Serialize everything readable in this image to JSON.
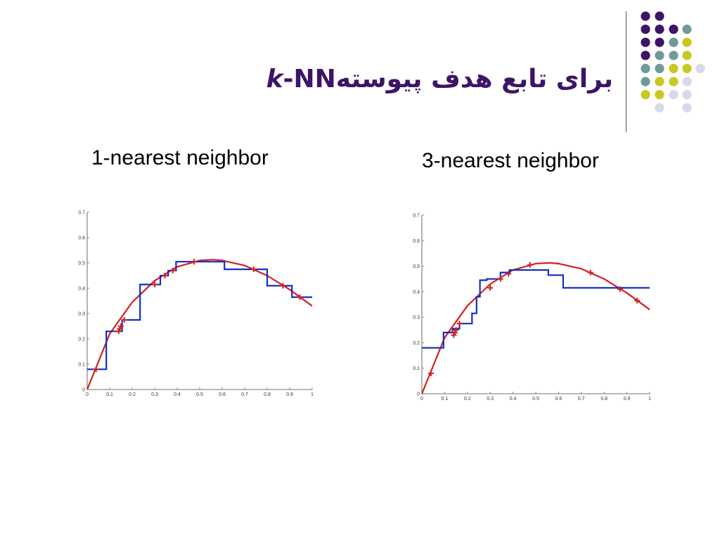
{
  "slide": {
    "title_prefix": "k",
    "title_middle": "-NN",
    "title_farsi": "برای تابع هدف پیوسته",
    "accent_colors": [
      "#3d1466",
      "#6f9a9a",
      "#c9c822",
      "#d8d8e8"
    ]
  },
  "chart_data": [
    {
      "type": "line",
      "title": "1-nearest neighbor",
      "xlim": [
        0,
        1
      ],
      "ylim": [
        0,
        0.7
      ],
      "x_ticks": [
        "0",
        "0.1",
        "0.2",
        "0.3",
        "0.4",
        "0.5",
        "0.6",
        "0.7",
        "0.8",
        "0.9",
        "1"
      ],
      "y_ticks": [
        "0",
        "0.1",
        "0.2",
        "0.3",
        "0.4",
        "0.5",
        "0.6",
        "0.7"
      ],
      "grid": false,
      "target_function": {
        "color": "#d42020",
        "x": [
          0,
          0.1,
          0.2,
          0.3,
          0.4,
          0.5,
          0.56,
          0.6,
          0.7,
          0.8,
          0.9,
          1.0
        ],
        "y": [
          0,
          0.22,
          0.345,
          0.43,
          0.485,
          0.51,
          0.513,
          0.51,
          0.49,
          0.45,
          0.395,
          0.33
        ]
      },
      "training_points": {
        "color": "#d42020",
        "x": [
          0.04,
          0.14,
          0.145,
          0.15,
          0.165,
          0.3,
          0.345,
          0.38,
          0.475,
          0.74,
          0.87,
          0.945
        ],
        "y": [
          0.08,
          0.23,
          0.24,
          0.25,
          0.275,
          0.415,
          0.45,
          0.47,
          0.505,
          0.475,
          0.41,
          0.365
        ]
      },
      "prediction": {
        "color": "#1030c0",
        "x": [
          0,
          0.085,
          0.085,
          0.155,
          0.155,
          0.235,
          0.235,
          0.325,
          0.325,
          0.36,
          0.36,
          0.395,
          0.395,
          0.61,
          0.61,
          0.8,
          0.8,
          0.91,
          0.91,
          1.0
        ],
        "y": [
          0.08,
          0.08,
          0.23,
          0.23,
          0.275,
          0.275,
          0.415,
          0.415,
          0.45,
          0.45,
          0.47,
          0.47,
          0.505,
          0.505,
          0.475,
          0.475,
          0.41,
          0.41,
          0.365,
          0.365
        ]
      }
    },
    {
      "type": "line",
      "title": "3-nearest neighbor",
      "xlim": [
        0,
        1
      ],
      "ylim": [
        0,
        0.7
      ],
      "x_ticks": [
        "0",
        "0.1",
        "0.2",
        "0.3",
        "0.4",
        "0.5",
        "0.6",
        "0.7",
        "0.8",
        "0.9",
        "1"
      ],
      "y_ticks": [
        "0",
        "0.1",
        "0.2",
        "0.3",
        "0.4",
        "0.5",
        "0.6",
        "0.7"
      ],
      "grid": false,
      "target_function": {
        "color": "#d42020",
        "x": [
          0,
          0.1,
          0.2,
          0.3,
          0.4,
          0.5,
          0.56,
          0.6,
          0.7,
          0.8,
          0.9,
          1.0
        ],
        "y": [
          0,
          0.22,
          0.345,
          0.43,
          0.485,
          0.51,
          0.513,
          0.51,
          0.49,
          0.45,
          0.395,
          0.33
        ]
      },
      "training_points": {
        "color": "#d42020",
        "x": [
          0.04,
          0.14,
          0.145,
          0.15,
          0.165,
          0.3,
          0.345,
          0.38,
          0.475,
          0.74,
          0.87,
          0.945
        ],
        "y": [
          0.08,
          0.23,
          0.24,
          0.25,
          0.275,
          0.415,
          0.45,
          0.47,
          0.505,
          0.475,
          0.41,
          0.365
        ]
      },
      "prediction": {
        "color": "#1030c0",
        "x": [
          0,
          0.095,
          0.095,
          0.135,
          0.135,
          0.165,
          0.165,
          0.22,
          0.22,
          0.24,
          0.24,
          0.255,
          0.255,
          0.285,
          0.285,
          0.345,
          0.345,
          0.385,
          0.385,
          0.555,
          0.555,
          0.62,
          0.62,
          0.72,
          0.72,
          1.0
        ],
        "y": [
          0.18,
          0.18,
          0.24,
          0.24,
          0.255,
          0.255,
          0.275,
          0.275,
          0.315,
          0.315,
          0.38,
          0.38,
          0.445,
          0.445,
          0.45,
          0.45,
          0.475,
          0.475,
          0.485,
          0.485,
          0.465,
          0.465,
          0.415,
          0.415,
          0.415,
          0.415
        ]
      }
    }
  ]
}
